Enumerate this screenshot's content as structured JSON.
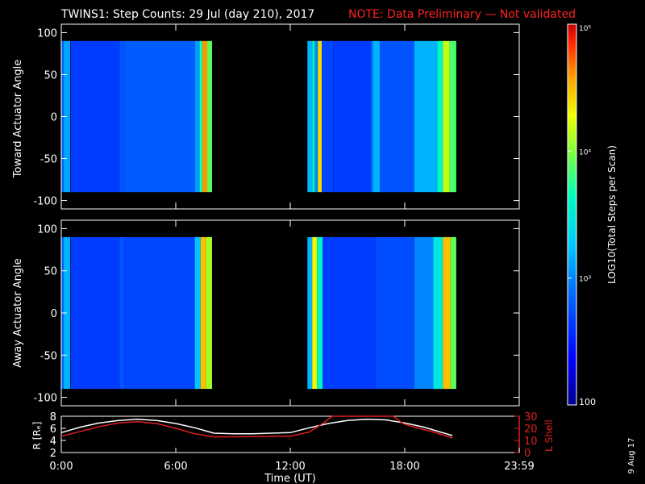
{
  "chart_data": {
    "type": "heatmap",
    "title": "TWINS1: Step Counts: 29 Jul (day 210), 2017",
    "note": "NOTE: Data Preliminary — Not validated",
    "date_stamp": "9 Aug 17",
    "xlabel": "Time (UT)",
    "xlim": [
      0,
      24
    ],
    "x_ticks": [
      "0:00",
      "6:00",
      "12:00",
      "18:00",
      "23:59"
    ],
    "colors": {
      "note": "#ff2020",
      "r_line": "#ffffff",
      "lshell_line": "#e02020",
      "axis": "#ffffff"
    },
    "colorbar": {
      "label": "LOG10(Total Steps per Scan)",
      "scale": "log",
      "range": [
        100,
        100000
      ],
      "ticks": [
        {
          "value": 100,
          "label": "100"
        },
        {
          "value": 1000,
          "label": "10³"
        },
        {
          "value": 10000,
          "label": "10⁴"
        },
        {
          "value": 100000,
          "label": "10⁵"
        }
      ]
    },
    "panels": [
      {
        "ylabel": "Toward Actuator Angle",
        "ylim": [
          -110,
          110
        ],
        "y_ticks": [
          100,
          50,
          0,
          -50,
          -100
        ],
        "y_range": [
          -90,
          90
        ],
        "blocks": [
          {
            "t_start": 0.0,
            "t_end": 7.9,
            "columns": [
              {
                "t": 0.0,
                "w": 0.12,
                "value": 700
              },
              {
                "t": 0.12,
                "w": 0.35,
                "value": 1300
              },
              {
                "t": 0.5,
                "w": 2.55,
                "value": 450
              },
              {
                "t": 3.05,
                "w": 0.25,
                "value": 600
              },
              {
                "t": 3.3,
                "w": 3.7,
                "value": 650
              },
              {
                "t": 7.0,
                "w": 0.25,
                "value": 1200
              },
              {
                "t": 7.25,
                "w": 0.15,
                "value": 5000
              },
              {
                "t": 7.4,
                "w": 0.25,
                "value": 40000
              },
              {
                "t": 7.65,
                "w": 0.25,
                "value": 8000
              }
            ]
          },
          {
            "t_start": 12.9,
            "t_end": 20.7,
            "columns": [
              {
                "t": 12.9,
                "w": 0.25,
                "value": 1500
              },
              {
                "t": 13.15,
                "w": 0.15,
                "value": 3500
              },
              {
                "t": 13.3,
                "w": 0.15,
                "value": 1000
              },
              {
                "t": 13.45,
                "w": 0.2,
                "value": 25000
              },
              {
                "t": 13.65,
                "w": 0.6,
                "value": 500
              },
              {
                "t": 14.25,
                "w": 2.0,
                "value": 450
              },
              {
                "t": 16.25,
                "w": 0.1,
                "value": 900
              },
              {
                "t": 16.35,
                "w": 0.35,
                "value": 1500
              },
              {
                "t": 16.7,
                "w": 1.8,
                "value": 600
              },
              {
                "t": 18.5,
                "w": 1.2,
                "value": 1500
              },
              {
                "t": 19.7,
                "w": 0.3,
                "value": 4000
              },
              {
                "t": 20.0,
                "w": 0.35,
                "value": 15000
              },
              {
                "t": 20.35,
                "w": 0.35,
                "value": 7000
              }
            ]
          }
        ]
      },
      {
        "ylabel": "Away Actuator Angle",
        "ylim": [
          -110,
          110
        ],
        "y_ticks": [
          100,
          50,
          0,
          -50,
          -100
        ],
        "y_range": [
          -90,
          90
        ],
        "blocks": [
          {
            "t_start": 0.0,
            "t_end": 7.9,
            "columns": [
              {
                "t": 0.0,
                "w": 0.12,
                "value": 700
              },
              {
                "t": 0.12,
                "w": 0.35,
                "value": 1500
              },
              {
                "t": 0.5,
                "w": 2.55,
                "value": 450
              },
              {
                "t": 3.05,
                "w": 0.25,
                "value": 600
              },
              {
                "t": 3.3,
                "w": 3.7,
                "value": 500
              },
              {
                "t": 7.0,
                "w": 0.3,
                "value": 1800
              },
              {
                "t": 7.3,
                "w": 0.3,
                "value": 30000
              },
              {
                "t": 7.6,
                "w": 0.3,
                "value": 12000
              }
            ]
          },
          {
            "t_start": 12.9,
            "t_end": 20.7,
            "columns": [
              {
                "t": 12.9,
                "w": 0.25,
                "value": 1500
              },
              {
                "t": 13.15,
                "w": 0.25,
                "value": 20000
              },
              {
                "t": 13.4,
                "w": 0.3,
                "value": 4000
              },
              {
                "t": 13.7,
                "w": 2.8,
                "value": 450
              },
              {
                "t": 16.5,
                "w": 2.0,
                "value": 550
              },
              {
                "t": 18.5,
                "w": 1.0,
                "value": 1000
              },
              {
                "t": 19.5,
                "w": 0.5,
                "value": 3000
              },
              {
                "t": 20.0,
                "w": 0.4,
                "value": 30000
              },
              {
                "t": 20.4,
                "w": 0.3,
                "value": 8000
              }
            ]
          }
        ]
      }
    ],
    "bottom_panel": {
      "left_label": "R [Rₑ]",
      "right_label": "L Shell",
      "ylim_left": [
        2,
        8
      ],
      "y_ticks_left": [
        2,
        4,
        6,
        8
      ],
      "ylim_right": [
        0,
        30
      ],
      "y_ticks_right": [
        0,
        10,
        20,
        30
      ],
      "series": [
        {
          "axis": "left",
          "x": [
            0,
            1,
            2,
            3,
            4,
            5,
            6,
            7,
            8,
            9,
            10,
            11,
            12,
            13,
            14,
            15,
            16,
            17,
            18,
            19,
            20.5
          ],
          "y": [
            5.3,
            6.2,
            6.9,
            7.3,
            7.5,
            7.3,
            6.8,
            6.1,
            5.2,
            5.1,
            5.1,
            5.2,
            5.3,
            6.1,
            6.8,
            7.3,
            7.5,
            7.4,
            6.9,
            6.2,
            4.8
          ]
        },
        {
          "axis": "right",
          "x": [
            0,
            1,
            2,
            3,
            4,
            5,
            6,
            7,
            8,
            9,
            10,
            11,
            12,
            13,
            13.7,
            14.2,
            17.4,
            17.9,
            18.5,
            19.5,
            20.5
          ],
          "y": [
            13.5,
            17.5,
            21.5,
            24.5,
            25.5,
            24,
            20,
            15.5,
            13,
            13,
            13.2,
            13.5,
            13.5,
            17,
            24,
            30,
            30,
            24,
            21,
            17,
            12
          ]
        }
      ]
    }
  }
}
